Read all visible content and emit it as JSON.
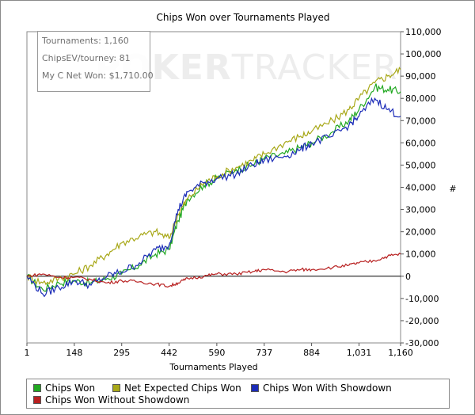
{
  "chart_data": {
    "type": "line",
    "title": "Chips Won over Tournaments Played",
    "xlabel": "Tournaments Played",
    "ylabel": "#",
    "xlim": [
      1,
      1160
    ],
    "ylim": [
      -30000,
      110000
    ],
    "x_ticks": [
      "1",
      "148",
      "295",
      "442",
      "590",
      "737",
      "884",
      "1,031",
      "1,160"
    ],
    "y_ticks": [
      "110,000",
      "100,000",
      "90,000",
      "80,000",
      "70,000",
      "60,000",
      "50,000",
      "40,000",
      "30,000",
      "20,000",
      "10,000",
      "0",
      "-10,000",
      "-20,000",
      "-30,000"
    ],
    "x": [
      1,
      50,
      100,
      148,
      200,
      250,
      295,
      350,
      400,
      442,
      470,
      500,
      550,
      590,
      650,
      700,
      737,
      800,
      850,
      884,
      950,
      1000,
      1031,
      1080,
      1120,
      1160
    ],
    "series": [
      {
        "name": "Chips Won",
        "color": "#22a822",
        "values": [
          0,
          -6000,
          -3000,
          -2000,
          -3000,
          -1000,
          1000,
          5000,
          10000,
          12000,
          25000,
          35000,
          41000,
          44000,
          48000,
          50000,
          53000,
          55000,
          58000,
          60000,
          65000,
          70000,
          75000,
          85000,
          84000,
          83000
        ]
      },
      {
        "name": "Net Expected Chips Won",
        "color": "#a8a818",
        "values": [
          0,
          -3000,
          -1000,
          1000,
          5000,
          10000,
          15000,
          18000,
          20000,
          17000,
          28000,
          35000,
          42000,
          45000,
          49000,
          52000,
          55000,
          60000,
          63000,
          65000,
          70000,
          75000,
          80000,
          87000,
          90000,
          93000
        ]
      },
      {
        "name": "Chips Won With Showdown",
        "color": "#1c2cb8",
        "values": [
          0,
          -8000,
          -5000,
          -2000,
          -4000,
          0,
          2000,
          6000,
          12000,
          14000,
          30000,
          38000,
          42000,
          44000,
          46000,
          50000,
          52000,
          54000,
          57000,
          60000,
          63000,
          68000,
          72000,
          80000,
          75000,
          72000
        ]
      },
      {
        "name": "Chips Won Without Showdown",
        "color": "#b82020",
        "values": [
          0,
          1000,
          -500,
          -500,
          -1500,
          -3000,
          -2000,
          -2500,
          -3500,
          -4500,
          -3000,
          -1000,
          0,
          1000,
          1000,
          2000,
          3000,
          2000,
          3000,
          3000,
          4000,
          5000,
          6000,
          7000,
          9000,
          10000
        ]
      }
    ]
  },
  "stats": {
    "tournaments": "Tournaments: 1,160",
    "chips_ev": "ChipsEV/tourney: 81",
    "net_won": "My C Net Won: $1,710.00"
  },
  "watermark": {
    "part1": "POKER",
    "part2": "TRACKER"
  },
  "legend": [
    {
      "label": "Chips Won",
      "color": "#22a822"
    },
    {
      "label": "Net Expected Chips Won",
      "color": "#a8a818"
    },
    {
      "label": "Chips Won With Showdown",
      "color": "#1c2cb8"
    },
    {
      "label": "Chips Won Without Showdown",
      "color": "#b82020"
    }
  ]
}
